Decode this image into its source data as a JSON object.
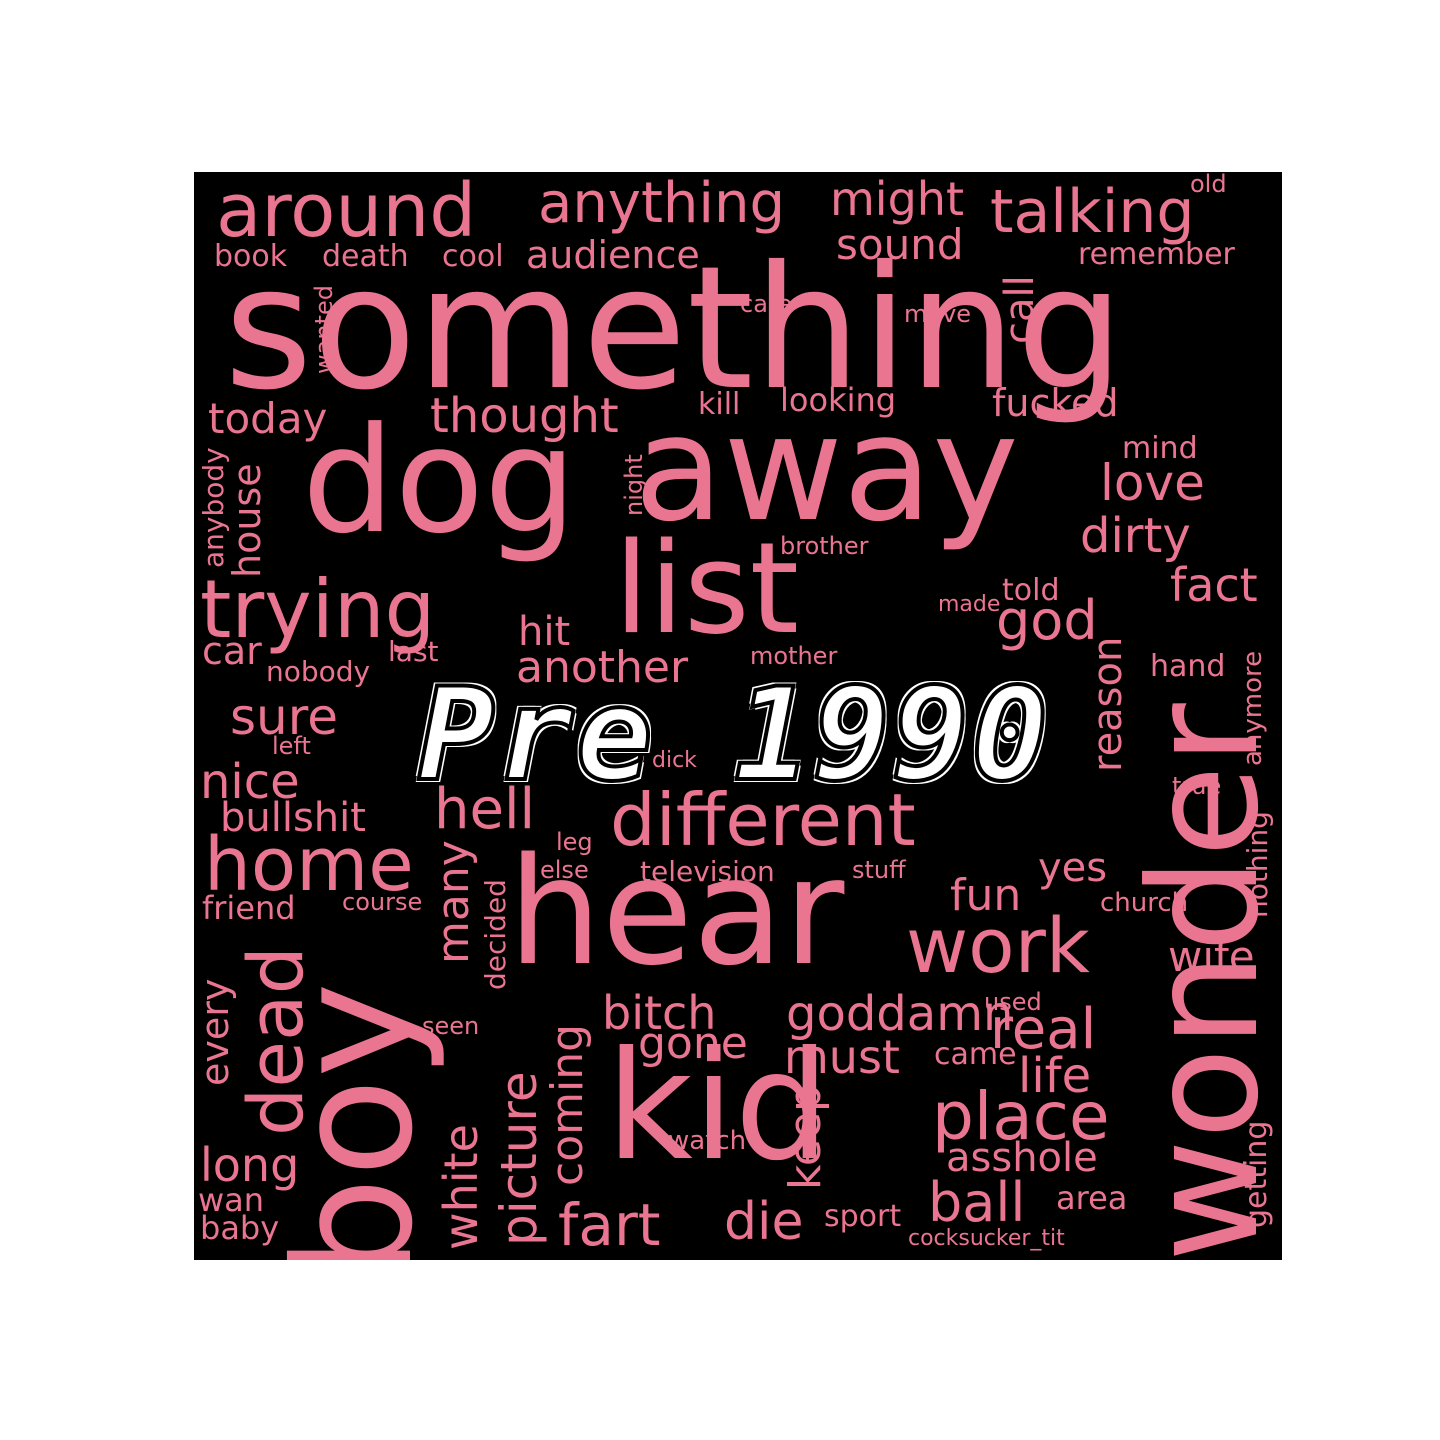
{
  "colors": {
    "background": "#000000",
    "word": "#ea7590",
    "title": "#ffffff"
  },
  "title": "Pre 1990",
  "words": {
    "around": "around",
    "anything": "anything",
    "might": "might",
    "talking": "talking",
    "old": "old",
    "book": "book",
    "death": "death",
    "cool": "cool",
    "audience": "audience",
    "sound": "sound",
    "remember": "remember",
    "something": "something",
    "care": "care",
    "move": "move",
    "call": "call",
    "wanted": "wanted",
    "today": "today",
    "thought": "thought",
    "kill": "kill",
    "looking": "looking",
    "fucked": "fucked",
    "dog": "dog",
    "away": "away",
    "mind": "mind",
    "love": "love",
    "anybody": "anybody",
    "house": "house",
    "night": "night",
    "dirty": "dirty",
    "brother": "brother",
    "list": "list",
    "trying": "trying",
    "fact": "fact",
    "told": "told",
    "made": "made",
    "god": "god",
    "hit": "hit",
    "car": "car",
    "last": "last",
    "mother": "mother",
    "another": "another",
    "nobody": "nobody",
    "hand": "hand",
    "reason": "reason",
    "anymore": "anymore",
    "sure": "sure",
    "left": "left",
    "dick": "dick",
    "wonder": "wonder",
    "nice": "nice",
    "true": "true",
    "different": "different",
    "bullshit": "bullshit",
    "hell": "hell",
    "nothing": "nothing",
    "leg": "leg",
    "home": "home",
    "else": "else",
    "television": "television",
    "stuff": "stuff",
    "yes": "yes",
    "fun": "fun",
    "many": "many",
    "decided": "decided",
    "friend": "friend",
    "course": "course",
    "church": "church",
    "hear": "hear",
    "work": "work",
    "boy": "boy",
    "dead": "dead",
    "wife": "wife",
    "every": "every",
    "used": "used",
    "seen": "seen",
    "bitch": "bitch",
    "goddamn": "goddamn",
    "real": "real",
    "picture": "picture",
    "coming": "coming",
    "gone": "gone",
    "must": "must",
    "came": "came",
    "kid": "kid",
    "life": "life",
    "place": "place",
    "keep": "keep",
    "getting": "getting",
    "white": "white",
    "watch": "watch",
    "long": "long",
    "asshole": "asshole",
    "wan": "wan",
    "ball": "ball",
    "area": "area",
    "fart": "fart",
    "die": "die",
    "sport": "sport",
    "baby": "baby",
    "cocksucker_tit": "cocksucker_tit"
  }
}
